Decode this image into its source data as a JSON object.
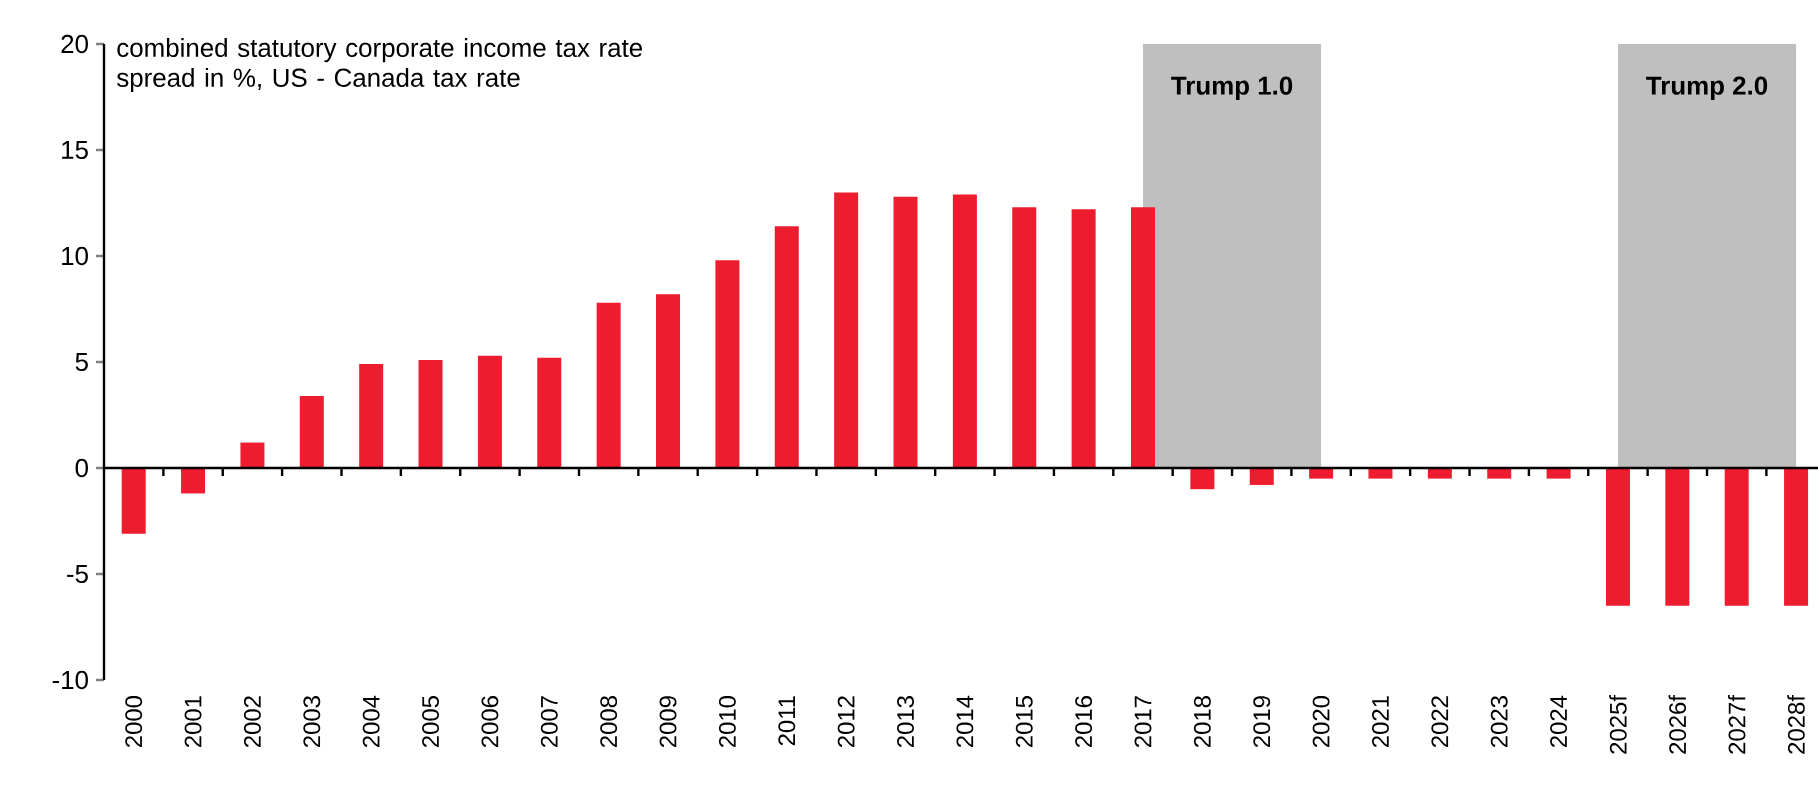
{
  "chart_data": {
    "type": "bar",
    "title": "combined statutory corporate income tax rate spread in %, US - Canada tax rate",
    "categories": [
      "2000",
      "2001",
      "2002",
      "2003",
      "2004",
      "2005",
      "2006",
      "2007",
      "2008",
      "2009",
      "2010",
      "2011",
      "2012",
      "2013",
      "2014",
      "2015",
      "2016",
      "2017",
      "2018",
      "2019",
      "2020",
      "2021",
      "2022",
      "2023",
      "2024",
      "2025f",
      "2026f",
      "2027f",
      "2028f"
    ],
    "values": [
      -3.1,
      -1.2,
      1.2,
      3.4,
      4.9,
      5.1,
      5.3,
      5.2,
      7.8,
      8.2,
      9.8,
      11.4,
      13.0,
      12.8,
      12.9,
      12.3,
      12.2,
      12.3,
      -1.0,
      -0.8,
      -0.5,
      -0.5,
      -0.5,
      -0.5,
      -0.5,
      -6.5,
      -6.5,
      -6.5,
      -6.5
    ],
    "color": "#ed1c2e",
    "ylim": [
      -10,
      20
    ],
    "yticks": [
      -10,
      -5,
      0,
      5,
      10,
      15,
      20
    ],
    "bands": [
      {
        "axis": "x",
        "from": "2017",
        "to": "2020",
        "label": "Trump 1.0",
        "color": "#bfbfbf"
      },
      {
        "axis": "x",
        "from": "2025f",
        "to": "2028f",
        "label": "Trump 2.0",
        "color": "#bfbfbf"
      }
    ]
  }
}
